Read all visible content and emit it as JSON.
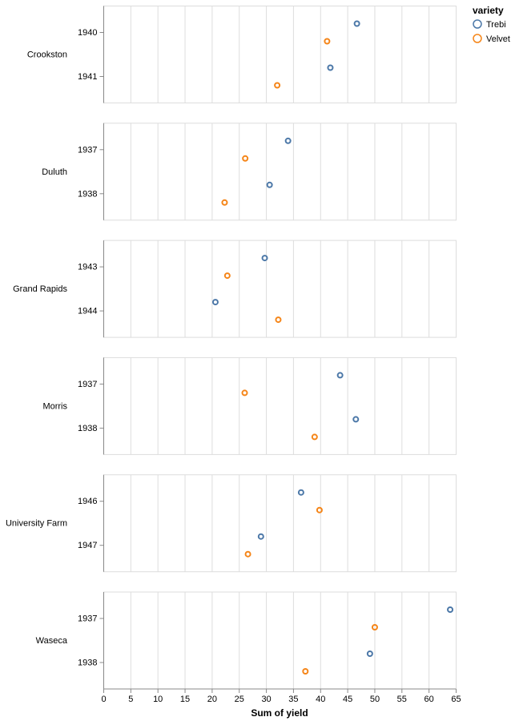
{
  "chart_data": {
    "type": "scatter",
    "xlabel": "Sum of yield",
    "xlim": [
      0,
      65
    ],
    "x_ticks": [
      "0",
      "5",
      "10",
      "15",
      "20",
      "25",
      "30",
      "35",
      "40",
      "45",
      "50",
      "55",
      "60",
      "65"
    ],
    "grid": true,
    "legend": {
      "title": "variety",
      "position": "top-right"
    },
    "series": [
      {
        "name": "Trebi",
        "color": "#4c78a8"
      },
      {
        "name": "Velvet",
        "color": "#f58518"
      }
    ],
    "facets": [
      {
        "site": "Crookston",
        "years": [
          "1940",
          "1941"
        ],
        "points": [
          {
            "year": "1940",
            "variety": "Trebi",
            "yield": 46.7
          },
          {
            "year": "1940",
            "variety": "Velvet",
            "yield": 41.2
          },
          {
            "year": "1941",
            "variety": "Trebi",
            "yield": 41.8
          },
          {
            "year": "1941",
            "variety": "Velvet",
            "yield": 32.0
          }
        ]
      },
      {
        "site": "Duluth",
        "years": [
          "1937",
          "1938"
        ],
        "points": [
          {
            "year": "1937",
            "variety": "Trebi",
            "yield": 34.0
          },
          {
            "year": "1937",
            "variety": "Velvet",
            "yield": 26.1
          },
          {
            "year": "1938",
            "variety": "Trebi",
            "yield": 30.6
          },
          {
            "year": "1938",
            "variety": "Velvet",
            "yield": 22.3
          }
        ]
      },
      {
        "site": "Grand Rapids",
        "years": [
          "1943",
          "1944"
        ],
        "points": [
          {
            "year": "1943",
            "variety": "Trebi",
            "yield": 29.7
          },
          {
            "year": "1943",
            "variety": "Velvet",
            "yield": 22.8
          },
          {
            "year": "1944",
            "variety": "Trebi",
            "yield": 20.6
          },
          {
            "year": "1944",
            "variety": "Velvet",
            "yield": 32.2
          }
        ]
      },
      {
        "site": "Morris",
        "years": [
          "1937",
          "1938"
        ],
        "points": [
          {
            "year": "1937",
            "variety": "Trebi",
            "yield": 43.6
          },
          {
            "year": "1937",
            "variety": "Velvet",
            "yield": 26.0
          },
          {
            "year": "1938",
            "variety": "Trebi",
            "yield": 46.5
          },
          {
            "year": "1938",
            "variety": "Velvet",
            "yield": 38.9
          }
        ]
      },
      {
        "site": "University Farm",
        "years": [
          "1946",
          "1947"
        ],
        "points": [
          {
            "year": "1946",
            "variety": "Trebi",
            "yield": 36.4
          },
          {
            "year": "1946",
            "variety": "Velvet",
            "yield": 39.8
          },
          {
            "year": "1947",
            "variety": "Trebi",
            "yield": 29.0
          },
          {
            "year": "1947",
            "variety": "Velvet",
            "yield": 26.6
          }
        ]
      },
      {
        "site": "Waseca",
        "years": [
          "1937",
          "1938"
        ],
        "points": [
          {
            "year": "1937",
            "variety": "Trebi",
            "yield": 63.9
          },
          {
            "year": "1937",
            "variety": "Velvet",
            "yield": 50.0
          },
          {
            "year": "1938",
            "variety": "Trebi",
            "yield": 49.1
          },
          {
            "year": "1938",
            "variety": "Velvet",
            "yield": 37.2
          }
        ]
      }
    ]
  }
}
